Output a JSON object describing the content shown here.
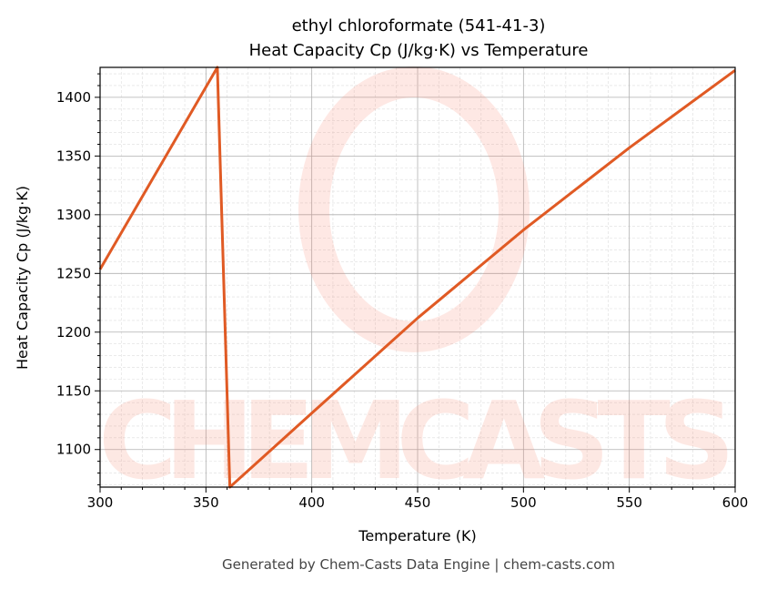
{
  "chart_data": {
    "type": "line",
    "title_line1": "ethyl chloroformate (541-41-3)",
    "title_line2": "Heat Capacity Cp (J/kg·K) vs Temperature",
    "xlabel": "Temperature (K)",
    "ylabel": "Heat Capacity Cp (J/kg·K)",
    "xlim": [
      300,
      600
    ],
    "ylim": [
      1068,
      1425.5
    ],
    "xticks": [
      300,
      350,
      400,
      450,
      500,
      550,
      600
    ],
    "yticks": [
      1100,
      1150,
      1200,
      1250,
      1300,
      1350,
      1400
    ],
    "grid": true,
    "series": [
      {
        "name": "Cp",
        "color": "#e05a24",
        "x": [
          300,
          355.4,
          361.3,
          400,
          450,
          500,
          550,
          600
        ],
        "y": [
          1253.5,
          1425.5,
          1068,
          1131,
          1212,
          1287,
          1357,
          1423
        ]
      }
    ]
  },
  "watermark": "CHEMCASTS",
  "footer": "Generated by Chem-Casts Data Engine | chem-casts.com"
}
